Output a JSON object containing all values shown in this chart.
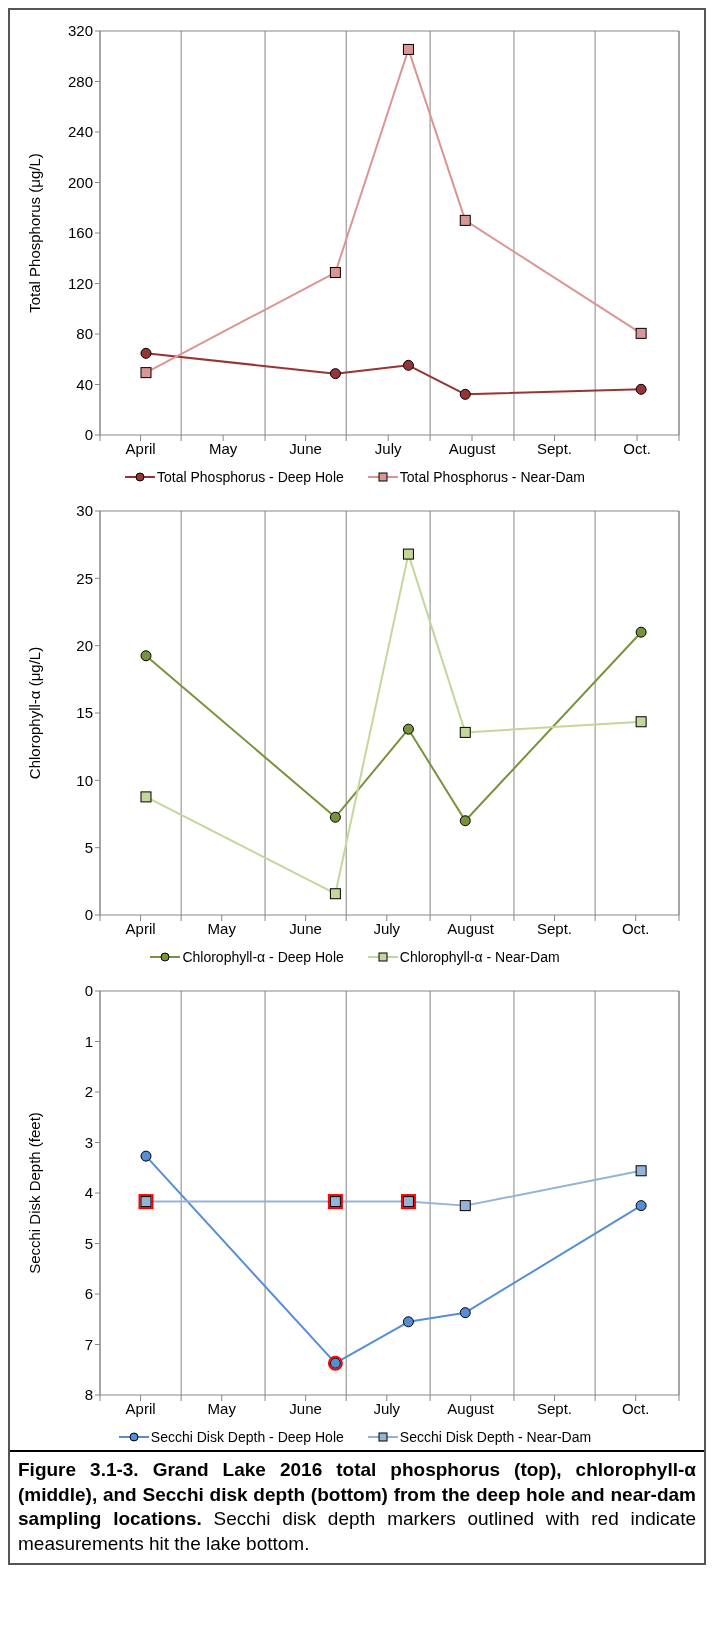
{
  "chart_data": [
    {
      "type": "line",
      "ylabel": "Total Phosphorus (μg/L)",
      "x": [
        "2016-04-18",
        "2016-06-27",
        "2016-07-24",
        "2016-08-14",
        "2016-10-18"
      ],
      "xlim": [
        "2016-04-01",
        "2016-11-01"
      ],
      "xticks": [
        {
          "value": "2016-04-01",
          "label": null
        },
        {
          "value": "2016-04-16",
          "label": "April"
        },
        {
          "value": "2016-05-01",
          "label": null
        },
        {
          "value": "2016-05-16T12:00",
          "label": "May"
        },
        {
          "value": "2016-06-01",
          "label": null
        },
        {
          "value": "2016-06-16",
          "label": "June"
        },
        {
          "value": "2016-07-01",
          "label": null
        },
        {
          "value": "2016-07-16T12:00",
          "label": "July"
        },
        {
          "value": "2016-08-01",
          "label": null
        },
        {
          "value": "2016-08-16T12:00",
          "label": "August"
        },
        {
          "value": "2016-09-01",
          "label": null
        },
        {
          "value": "2016-09-16",
          "label": "Sept."
        },
        {
          "value": "2016-10-01",
          "label": null
        },
        {
          "value": "2016-10-16T12:00",
          "label": "Oct."
        },
        {
          "value": "2016-11-01",
          "label": null
        }
      ],
      "ylim": [
        0,
        320
      ],
      "yticks": [
        0,
        40,
        80,
        120,
        160,
        200,
        240,
        280,
        320
      ],
      "grid": "x",
      "legend": "bottom",
      "line_style": "solid",
      "series": [
        {
          "name": "Total Phosphorus - Deep Hole",
          "color": "#963634",
          "marker": "circle",
          "values": [
            64.7,
            48.6,
            55.2,
            32.2,
            36.2
          ]
        },
        {
          "name": "Total Phosphorus - Near-Dam",
          "color": "#da9694",
          "marker": "square",
          "values": [
            49.4,
            128.7,
            305.4,
            170,
            80.5
          ]
        }
      ]
    },
    {
      "type": "line",
      "ylabel": "Chlorophyll-α  (μg/L)",
      "x": [
        "2016-04-18",
        "2016-06-27",
        "2016-07-24",
        "2016-08-14",
        "2016-10-18"
      ],
      "xlim": [
        "2016-04-01",
        "2016-11-01"
      ],
      "xticks": [
        {
          "value": "2016-04-01",
          "label": null
        },
        {
          "value": "2016-04-16",
          "label": "April"
        },
        {
          "value": "2016-05-01",
          "label": null
        },
        {
          "value": "2016-05-16",
          "label": "May"
        },
        {
          "value": "2016-06-01",
          "label": null
        },
        {
          "value": "2016-06-16",
          "label": "June"
        },
        {
          "value": "2016-07-01",
          "label": null
        },
        {
          "value": "2016-07-16",
          "label": "July"
        },
        {
          "value": "2016-08-01",
          "label": null
        },
        {
          "value": "2016-08-16",
          "label": "August"
        },
        {
          "value": "2016-09-01",
          "label": null
        },
        {
          "value": "2016-09-16",
          "label": "Sept."
        },
        {
          "value": "2016-10-01",
          "label": null
        },
        {
          "value": "2016-10-16",
          "label": "Oct."
        },
        {
          "value": "2016-11-01",
          "label": null
        }
      ],
      "ylim": [
        0,
        30
      ],
      "yticks": [
        0,
        5,
        10,
        15,
        20,
        25,
        30
      ],
      "grid": "x",
      "legend": "bottom",
      "line_style": "solid",
      "series": [
        {
          "name": "Chlorophyll-α - Deep Hole",
          "color": "#77933c",
          "marker": "circle",
          "values": [
            19.25,
            7.26,
            13.8,
            7.0,
            21.0
          ]
        },
        {
          "name": "Chlorophyll-α - Near-Dam",
          "color": "#c4d79b",
          "marker": "square",
          "values": [
            8.77,
            1.58,
            26.8,
            13.56,
            14.35
          ]
        }
      ]
    },
    {
      "type": "line",
      "ylabel": "Secchi Disk Depth (feet)",
      "x": [
        "2016-04-18",
        "2016-06-27",
        "2016-07-24",
        "2016-08-14",
        "2016-10-18"
      ],
      "xlim": [
        "2016-04-01",
        "2016-11-01"
      ],
      "xticks": [
        {
          "value": "2016-04-01",
          "label": null
        },
        {
          "value": "2016-04-16",
          "label": "April"
        },
        {
          "value": "2016-05-01",
          "label": null
        },
        {
          "value": "2016-05-16",
          "label": "May"
        },
        {
          "value": "2016-06-01",
          "label": null
        },
        {
          "value": "2016-06-16",
          "label": "June"
        },
        {
          "value": "2016-07-01",
          "label": null
        },
        {
          "value": "2016-07-16",
          "label": "July"
        },
        {
          "value": "2016-08-01",
          "label": null
        },
        {
          "value": "2016-08-16",
          "label": "August"
        },
        {
          "value": "2016-09-01",
          "label": null
        },
        {
          "value": "2016-09-16",
          "label": "Sept."
        },
        {
          "value": "2016-10-01",
          "label": null
        },
        {
          "value": "2016-10-16",
          "label": "Oct."
        },
        {
          "value": "2016-11-01",
          "label": null
        }
      ],
      "ylim": [
        8,
        0
      ],
      "yticks": [
        0,
        1,
        2,
        3,
        4,
        5,
        6,
        7,
        8
      ],
      "grid": "x",
      "legend": "bottom",
      "line_style": "solid",
      "series": [
        {
          "name": "Secchi Disk Depth - Deep Hole",
          "color": "#558ed5",
          "marker": "circle",
          "values": [
            3.27,
            7.37,
            6.55,
            6.37,
            4.25
          ]
        },
        {
          "name": "Secchi Disk Depth - Near-Dam",
          "color": "#95b3d7",
          "marker": "square",
          "values": [
            4.17,
            4.17,
            4.17,
            4.25,
            3.56
          ]
        },
        {
          "type": "scatter",
          "color": "#ff0000",
          "marker": "circle",
          "x": [
            "2016-06-27"
          ],
          "values": [
            7.37
          ]
        },
        {
          "type": "scatter",
          "color": "#ff0000",
          "marker": "square",
          "x": [
            "2016-04-18",
            "2016-06-27",
            "2016-07-24"
          ],
          "values": [
            4.17,
            4.17,
            4.17
          ]
        }
      ],
      "annotations": [
        "Figure 3.1-3.  Grand Lake 2016 total phosphorus (top), chlorophyll-α (middle), and Secchi disk depth (bottom) from the deep hole and near-dam sampling locations.",
        "Secchi disk depth markers outlined with red indicate measurements hit the lake bottom."
      ]
    }
  ]
}
